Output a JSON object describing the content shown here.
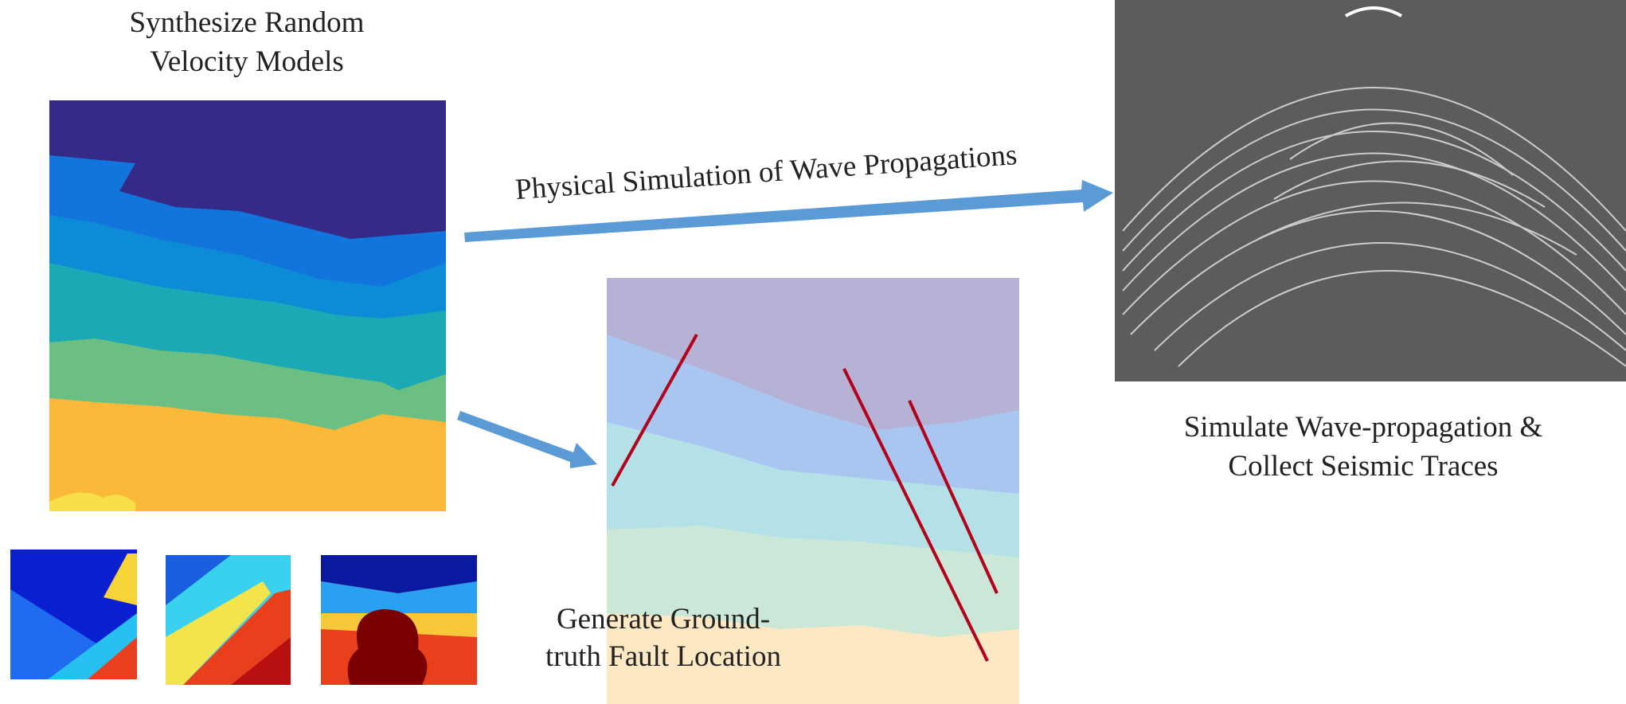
{
  "nodes": [
    {
      "label": [
        "Synthesize Random",
        "Velocity Models"
      ]
    },
    {
      "label": [
        "Simulate Wave-propagation &",
        "Collect Seismic Traces"
      ]
    },
    {
      "label": [
        "Generate Ground-",
        "truth Fault Location"
      ]
    }
  ],
  "edges": [
    {
      "label": "Physical Simulation of Wave Propagations"
    }
  ]
}
